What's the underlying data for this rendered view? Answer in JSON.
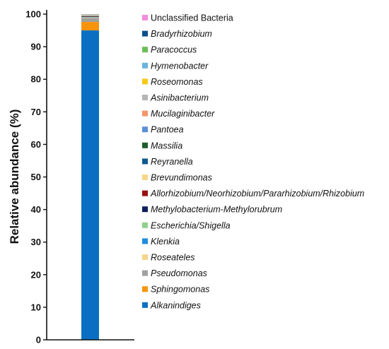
{
  "chart_data": {
    "type": "bar",
    "stacked": true,
    "categories": [
      ""
    ],
    "ylabel": "Relative abundance (%)",
    "ylim": [
      0,
      100
    ],
    "yticks": [
      0,
      10,
      20,
      30,
      40,
      50,
      60,
      70,
      80,
      90,
      100
    ],
    "grid": false,
    "legend_position": "right",
    "series": [
      {
        "name": "Alkanindiges",
        "values": [
          95.0
        ],
        "color": "#0A6FC2",
        "italic": true
      },
      {
        "name": "Sphingomonas",
        "values": [
          2.6
        ],
        "color": "#F7940B",
        "italic": true
      },
      {
        "name": "Pseudomonas",
        "values": [
          1.2
        ],
        "color": "#A0A0A0",
        "italic": true
      },
      {
        "name": "Roseateles",
        "values": [
          0.15
        ],
        "color": "#F5D58C",
        "italic": true
      },
      {
        "name": "Klenkia",
        "values": [
          0.1
        ],
        "color": "#1F8EE0",
        "italic": true
      },
      {
        "name": "Escherichia/Shigella",
        "values": [
          0.1
        ],
        "color": "#8FD08C",
        "italic": true
      },
      {
        "name": "Methylobacterium-Methylorubrum",
        "values": [
          0.1
        ],
        "color": "#0E1F5B",
        "italic": true
      },
      {
        "name": "Allorhizobium/Neorhizobium/Pararhizobium/Rhizobium",
        "values": [
          0.1
        ],
        "color": "#9B0E10",
        "italic": true
      },
      {
        "name": "Brevundimonas",
        "values": [
          0.1
        ],
        "color": "#F7D786",
        "italic": true
      },
      {
        "name": "Reyranella",
        "values": [
          0.05
        ],
        "color": "#0D5A90",
        "italic": true
      },
      {
        "name": "Massilia",
        "values": [
          0.05
        ],
        "color": "#1E5E2A",
        "italic": true
      },
      {
        "name": "Pantoea",
        "values": [
          0.05
        ],
        "color": "#5B8FD6",
        "italic": true
      },
      {
        "name": "Mucilaginibacter",
        "values": [
          0.05
        ],
        "color": "#F4956A",
        "italic": true
      },
      {
        "name": "Asinibacterium",
        "values": [
          0.05
        ],
        "color": "#B5B5B5",
        "italic": true
      },
      {
        "name": "Roseomonas",
        "values": [
          0.05
        ],
        "color": "#F7C819",
        "italic": true
      },
      {
        "name": "Hymenobacter",
        "values": [
          0.05
        ],
        "color": "#6BB3DF",
        "italic": true
      },
      {
        "name": "Paracoccus",
        "values": [
          0.05
        ],
        "color": "#6BBF59",
        "italic": true
      },
      {
        "name": "Bradyrhizobium",
        "values": [
          0.05
        ],
        "color": "#0C4F8E",
        "italic": true
      },
      {
        "name": "Unclassified Bacteria",
        "values": [
          0.05
        ],
        "color": "#F28DE0",
        "italic": false
      }
    ]
  }
}
